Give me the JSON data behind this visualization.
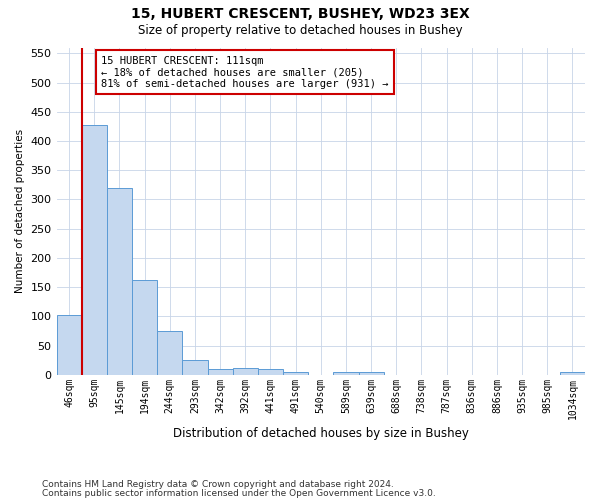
{
  "title": "15, HUBERT CRESCENT, BUSHEY, WD23 3EX",
  "subtitle": "Size of property relative to detached houses in Bushey",
  "xlabel": "Distribution of detached houses by size in Bushey",
  "ylabel": "Number of detached properties",
  "bar_labels": [
    "46sqm",
    "95sqm",
    "145sqm",
    "194sqm",
    "244sqm",
    "293sqm",
    "342sqm",
    "392sqm",
    "441sqm",
    "491sqm",
    "540sqm",
    "589sqm",
    "639sqm",
    "688sqm",
    "738sqm",
    "787sqm",
    "836sqm",
    "886sqm",
    "935sqm",
    "985sqm",
    "1034sqm"
  ],
  "bar_values": [
    103,
    427,
    320,
    163,
    75,
    25,
    10,
    11,
    10,
    5,
    0,
    5,
    5,
    0,
    0,
    0,
    0,
    0,
    0,
    0,
    4
  ],
  "bar_color": "#c5d8ef",
  "bar_edge_color": "#5b9bd5",
  "ylim": [
    0,
    560
  ],
  "yticks": [
    0,
    50,
    100,
    150,
    200,
    250,
    300,
    350,
    400,
    450,
    500,
    550
  ],
  "property_line_x": 0.5,
  "property_line_color": "#cc0000",
  "annotation_line1": "15 HUBERT CRESCENT: 111sqm",
  "annotation_line2": "← 18% of detached houses are smaller (205)",
  "annotation_line3": "81% of semi-detached houses are larger (931) →",
  "annotation_box_edgecolor": "#cc0000",
  "footnote_line1": "Contains HM Land Registry data © Crown copyright and database right 2024.",
  "footnote_line2": "Contains public sector information licensed under the Open Government Licence v3.0.",
  "bg_color": "#ffffff",
  "grid_color": "#c8d4e8",
  "title_fontsize": 10,
  "subtitle_fontsize": 8.5,
  "xlabel_fontsize": 8.5,
  "ylabel_fontsize": 7.5,
  "tick_fontsize": 7,
  "annotation_fontsize": 7.5,
  "footnote_fontsize": 6.5
}
